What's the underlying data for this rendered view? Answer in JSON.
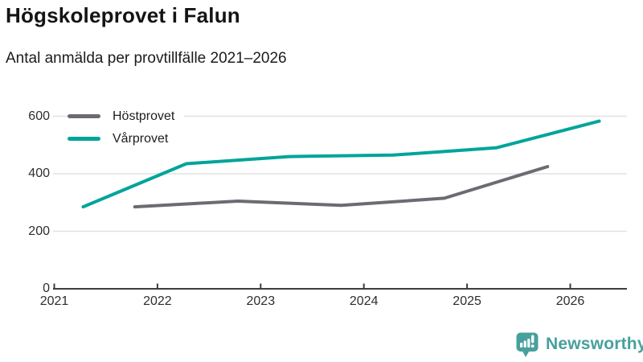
{
  "header": {
    "title": "Högskoleprovet i Falun",
    "subtitle": "Antal anmälda per provtillfälle 2021–2026"
  },
  "chart_data": {
    "type": "line",
    "title": "Högskoleprovet i Falun",
    "subtitle": "Antal anmälda per provtillfälle 2021–2026",
    "xlabel": "",
    "ylabel": "Antal anmälda",
    "xlim": [
      2021,
      2026.56
    ],
    "ylim": [
      0,
      620
    ],
    "xticks": [
      2021,
      2022,
      2023,
      2024,
      2025,
      2026
    ],
    "yticks": [
      0,
      200,
      400,
      600
    ],
    "grid": "horizontal-only",
    "legend_position": "top-left",
    "note_x_encoding": "x is decimal year: spring sitting ≈ year+0.28, autumn sitting ≈ year+0.78",
    "series": [
      {
        "name": "Höstprovet",
        "color": "#6e6a72",
        "x": [
          2021.78,
          2022.78,
          2023.78,
          2024.78,
          2025.78
        ],
        "values": [
          285,
          305,
          290,
          315,
          425
        ]
      },
      {
        "name": "Vårprovet",
        "color": "#00a49a",
        "x": [
          2021.28,
          2022.28,
          2023.28,
          2024.28,
          2025.28,
          2026.28
        ],
        "values": [
          285,
          435,
          460,
          465,
          490,
          583
        ]
      }
    ],
    "colors": {
      "gridline": "#e2e2e2",
      "axis": "#3d3d3d",
      "tick_label": "#2e2e2e"
    }
  },
  "branding": {
    "logo_text": "Newsworthy",
    "logo_icon": "newsworthy-bar-chart-bubble-icon",
    "logo_color": "#47a09d"
  }
}
